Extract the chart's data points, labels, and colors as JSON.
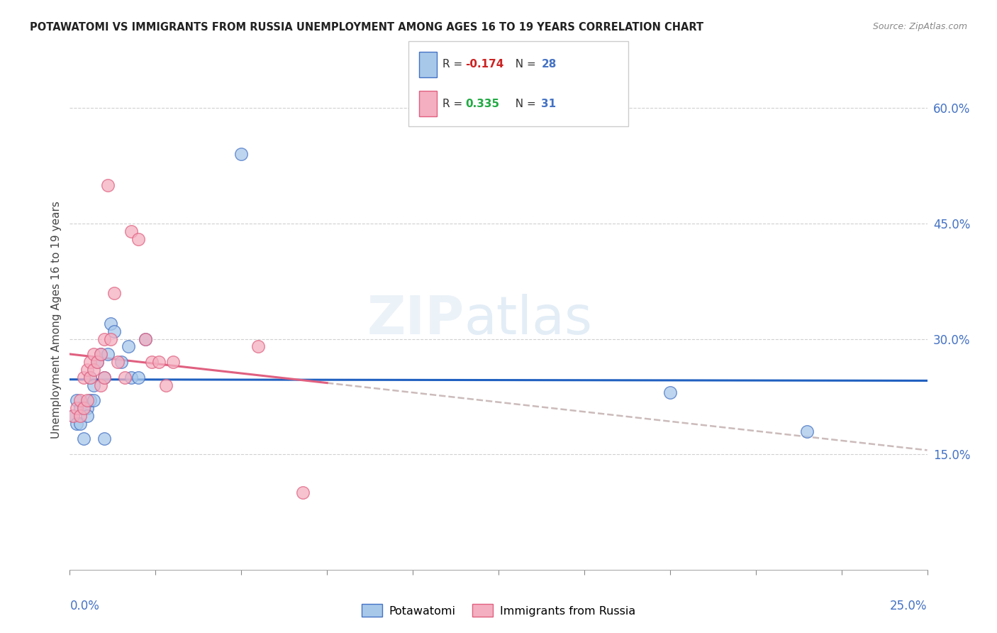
{
  "title": "POTAWATOMI VS IMMIGRANTS FROM RUSSIA UNEMPLOYMENT AMONG AGES 16 TO 19 YEARS CORRELATION CHART",
  "source": "Source: ZipAtlas.com",
  "ylabel": "Unemployment Among Ages 16 to 19 years",
  "x_range": [
    0.0,
    0.25
  ],
  "y_range": [
    0.0,
    0.65
  ],
  "y_ticks": [
    0.15,
    0.3,
    0.45,
    0.6
  ],
  "y_tick_labels": [
    "15.0%",
    "30.0%",
    "45.0%",
    "60.0%"
  ],
  "blue_fill": "#a8c8ea",
  "blue_edge": "#4472c4",
  "pink_fill": "#f4afc0",
  "pink_edge": "#e06080",
  "blue_line": "#2060c0",
  "pink_line": "#e06080",
  "dash_color": "#ccbbbb",
  "legend_R1": "-0.174",
  "legend_N1": "28",
  "legend_R2": "0.335",
  "legend_N2": "31",
  "potawatomi_x": [
    0.001,
    0.002,
    0.002,
    0.003,
    0.003,
    0.004,
    0.004,
    0.005,
    0.005,
    0.006,
    0.006,
    0.007,
    0.007,
    0.008,
    0.009,
    0.01,
    0.01,
    0.011,
    0.012,
    0.013,
    0.015,
    0.017,
    0.018,
    0.02,
    0.022,
    0.05,
    0.175,
    0.215
  ],
  "potawatomi_y": [
    0.2,
    0.22,
    0.19,
    0.21,
    0.19,
    0.21,
    0.17,
    0.21,
    0.2,
    0.25,
    0.22,
    0.24,
    0.22,
    0.27,
    0.28,
    0.25,
    0.17,
    0.28,
    0.32,
    0.31,
    0.27,
    0.29,
    0.25,
    0.25,
    0.3,
    0.54,
    0.23,
    0.18
  ],
  "russia_x": [
    0.001,
    0.002,
    0.003,
    0.003,
    0.004,
    0.004,
    0.005,
    0.005,
    0.006,
    0.006,
    0.007,
    0.007,
    0.008,
    0.009,
    0.009,
    0.01,
    0.01,
    0.011,
    0.012,
    0.013,
    0.014,
    0.016,
    0.018,
    0.02,
    0.022,
    0.024,
    0.026,
    0.028,
    0.03,
    0.055,
    0.068
  ],
  "russia_y": [
    0.2,
    0.21,
    0.2,
    0.22,
    0.21,
    0.25,
    0.26,
    0.22,
    0.25,
    0.27,
    0.26,
    0.28,
    0.27,
    0.24,
    0.28,
    0.25,
    0.3,
    0.5,
    0.3,
    0.36,
    0.27,
    0.25,
    0.44,
    0.43,
    0.3,
    0.27,
    0.27,
    0.24,
    0.27,
    0.29,
    0.1
  ]
}
